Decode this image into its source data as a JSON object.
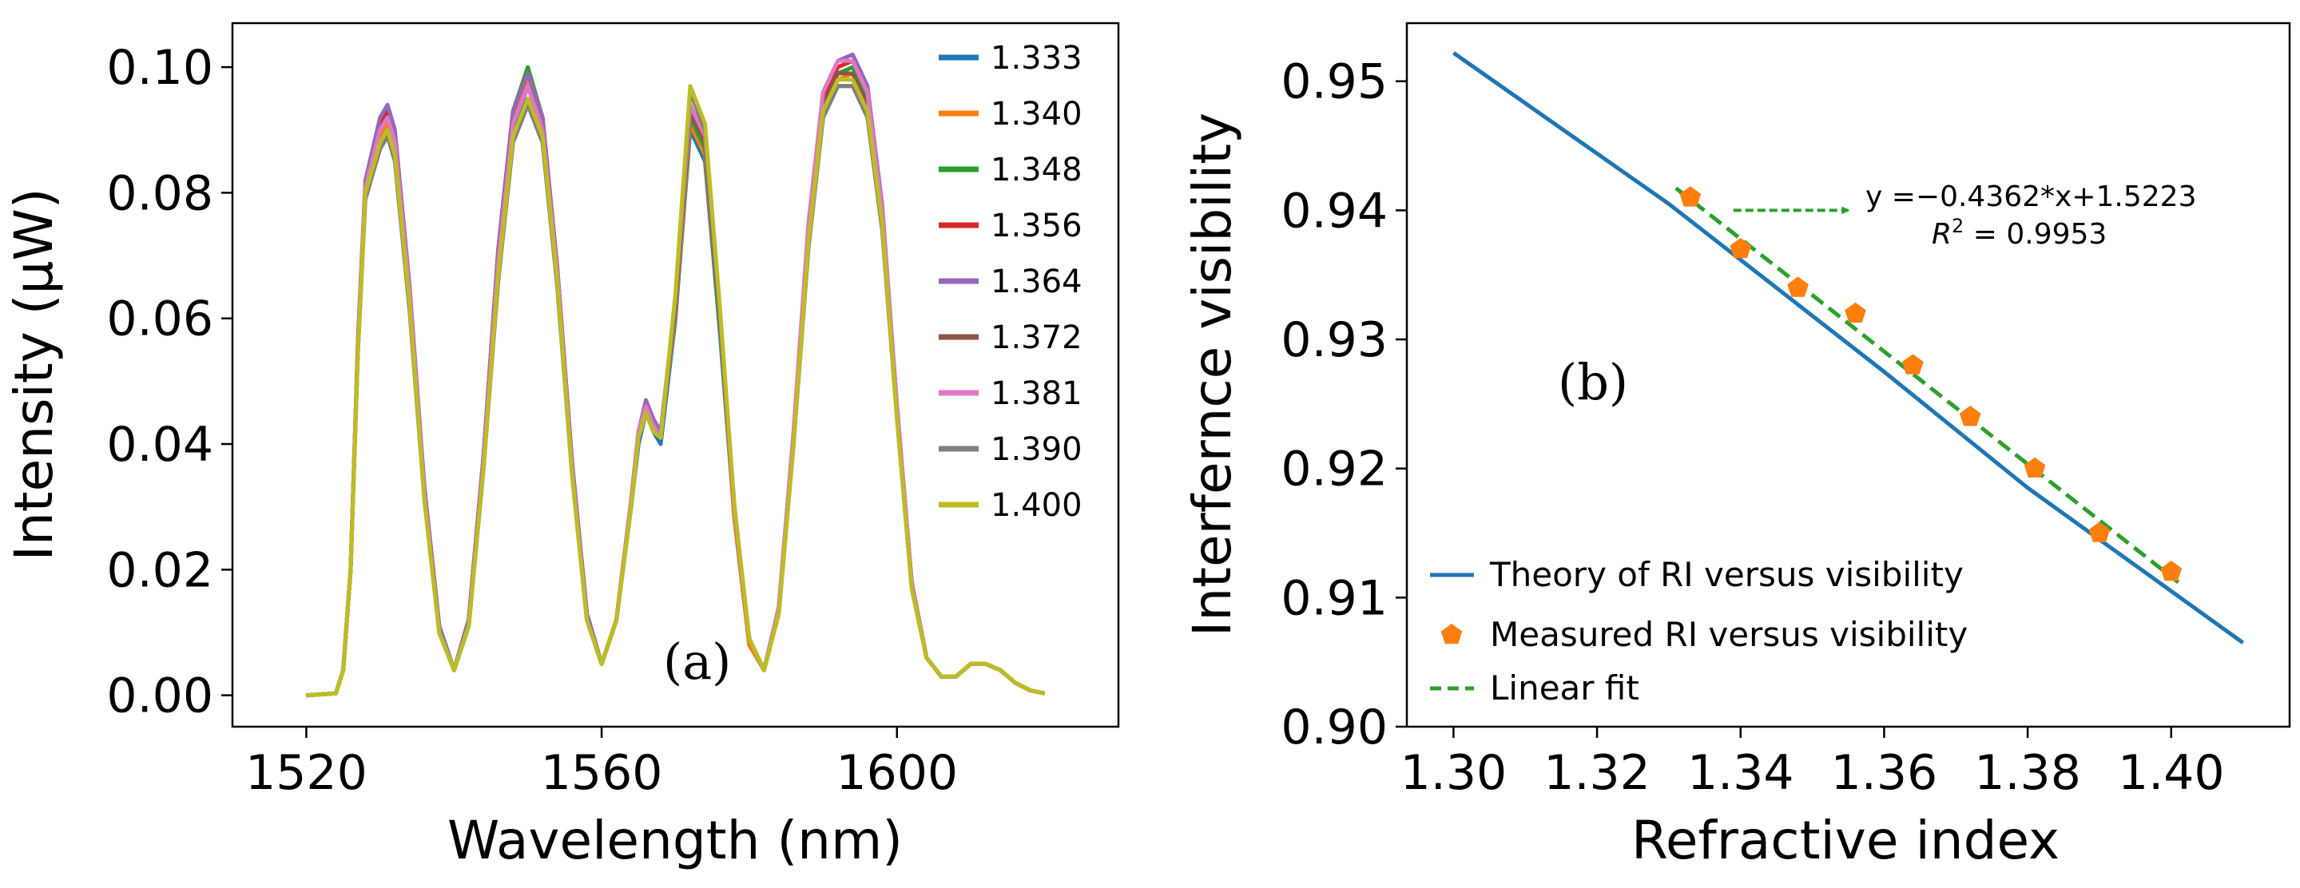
{
  "chart_data": [
    {
      "type": "line",
      "panel_label": "(a)",
      "xlabel": "Wavelength (nm)",
      "ylabel": "Intensity (μW)",
      "xlim": [
        1510,
        1630
      ],
      "ylim": [
        -0.005,
        0.107
      ],
      "xticks": [
        1520,
        1560,
        1600
      ],
      "yticks": [
        0.0,
        0.02,
        0.04,
        0.06,
        0.08,
        0.1
      ],
      "xtick_labels": [
        "1520",
        "1560",
        "1600"
      ],
      "ytick_labels": [
        "0.00",
        "0.02",
        "0.04",
        "0.06",
        "0.08",
        "0.10"
      ],
      "legend_position": "top-right",
      "x": [
        1520,
        1524,
        1525,
        1526,
        1527,
        1528,
        1530,
        1531,
        1532,
        1534,
        1536,
        1538,
        1540,
        1542,
        1544,
        1546,
        1548,
        1550,
        1552,
        1554,
        1556,
        1558,
        1560,
        1562,
        1564,
        1565,
        1566,
        1567,
        1568,
        1570,
        1572,
        1574,
        1576,
        1578,
        1580,
        1582,
        1584,
        1586,
        1588,
        1590,
        1592,
        1594,
        1596,
        1598,
        1600,
        1602,
        1604,
        1606,
        1608,
        1610,
        1612,
        1614,
        1616,
        1618,
        1620
      ],
      "series": [
        {
          "name": "1.333",
          "color": "#1f77b4",
          "values": [
            0,
            0.0003,
            0.004,
            0.02,
            0.055,
            0.08,
            0.088,
            0.09,
            0.086,
            0.062,
            0.032,
            0.01,
            0.004,
            0.011,
            0.036,
            0.068,
            0.09,
            0.097,
            0.09,
            0.066,
            0.036,
            0.012,
            0.005,
            0.012,
            0.03,
            0.04,
            0.045,
            0.042,
            0.04,
            0.06,
            0.09,
            0.085,
            0.058,
            0.028,
            0.008,
            0.004,
            0.014,
            0.04,
            0.072,
            0.092,
            0.097,
            0.097,
            0.093,
            0.075,
            0.045,
            0.018,
            0.006,
            0.003,
            0.003,
            0.005,
            0.005,
            0.004,
            0.002,
            0.0008,
            0.0003
          ]
        },
        {
          "name": "1.340",
          "color": "#ff7f0e",
          "values": [
            0,
            0.0003,
            0.004,
            0.02,
            0.055,
            0.08,
            0.089,
            0.091,
            0.087,
            0.063,
            0.032,
            0.01,
            0.004,
            0.011,
            0.037,
            0.069,
            0.091,
            0.098,
            0.091,
            0.067,
            0.037,
            0.012,
            0.005,
            0.012,
            0.031,
            0.041,
            0.046,
            0.043,
            0.041,
            0.061,
            0.091,
            0.086,
            0.059,
            0.028,
            0.008,
            0.004,
            0.014,
            0.041,
            0.073,
            0.093,
            0.098,
            0.099,
            0.094,
            0.076,
            0.045,
            0.018,
            0.006,
            0.003,
            0.003,
            0.005,
            0.005,
            0.004,
            0.002,
            0.0008,
            0.0003
          ]
        },
        {
          "name": "1.348",
          "color": "#2ca02c",
          "values": [
            0,
            0.0003,
            0.004,
            0.02,
            0.056,
            0.081,
            0.09,
            0.092,
            0.088,
            0.064,
            0.033,
            0.011,
            0.004,
            0.012,
            0.038,
            0.071,
            0.093,
            0.1,
            0.092,
            0.068,
            0.037,
            0.013,
            0.005,
            0.012,
            0.031,
            0.042,
            0.046,
            0.043,
            0.041,
            0.062,
            0.092,
            0.087,
            0.059,
            0.029,
            0.009,
            0.004,
            0.014,
            0.041,
            0.074,
            0.094,
            0.099,
            0.1,
            0.095,
            0.077,
            0.046,
            0.018,
            0.006,
            0.003,
            0.003,
            0.005,
            0.005,
            0.004,
            0.002,
            0.0008,
            0.0003
          ]
        },
        {
          "name": "1.356",
          "color": "#d62728",
          "values": [
            0,
            0.0003,
            0.004,
            0.02,
            0.056,
            0.081,
            0.091,
            0.093,
            0.089,
            0.064,
            0.033,
            0.011,
            0.004,
            0.012,
            0.038,
            0.071,
            0.093,
            0.099,
            0.092,
            0.068,
            0.037,
            0.013,
            0.005,
            0.012,
            0.031,
            0.042,
            0.046,
            0.043,
            0.041,
            0.062,
            0.093,
            0.088,
            0.06,
            0.029,
            0.009,
            0.004,
            0.014,
            0.042,
            0.074,
            0.095,
            0.1,
            0.101,
            0.096,
            0.077,
            0.046,
            0.018,
            0.006,
            0.003,
            0.003,
            0.005,
            0.005,
            0.004,
            0.002,
            0.0008,
            0.0003
          ]
        },
        {
          "name": "1.364",
          "color": "#9467bd",
          "values": [
            0,
            0.0003,
            0.004,
            0.02,
            0.057,
            0.082,
            0.092,
            0.094,
            0.09,
            0.065,
            0.033,
            0.011,
            0.004,
            0.012,
            0.038,
            0.071,
            0.093,
            0.099,
            0.092,
            0.068,
            0.037,
            0.013,
            0.005,
            0.012,
            0.031,
            0.042,
            0.047,
            0.044,
            0.042,
            0.063,
            0.094,
            0.088,
            0.06,
            0.029,
            0.009,
            0.004,
            0.014,
            0.042,
            0.075,
            0.096,
            0.101,
            0.102,
            0.097,
            0.078,
            0.046,
            0.018,
            0.006,
            0.003,
            0.003,
            0.005,
            0.005,
            0.004,
            0.002,
            0.0008,
            0.0003
          ]
        },
        {
          "name": "1.372",
          "color": "#8c564b",
          "values": [
            0,
            0.0003,
            0.004,
            0.02,
            0.056,
            0.081,
            0.09,
            0.092,
            0.088,
            0.064,
            0.032,
            0.01,
            0.004,
            0.011,
            0.037,
            0.069,
            0.091,
            0.097,
            0.09,
            0.067,
            0.036,
            0.012,
            0.005,
            0.012,
            0.03,
            0.041,
            0.046,
            0.043,
            0.041,
            0.062,
            0.093,
            0.088,
            0.06,
            0.029,
            0.009,
            0.004,
            0.014,
            0.041,
            0.073,
            0.094,
            0.099,
            0.099,
            0.094,
            0.076,
            0.045,
            0.018,
            0.006,
            0.003,
            0.003,
            0.005,
            0.005,
            0.004,
            0.002,
            0.0008,
            0.0003
          ]
        },
        {
          "name": "1.381",
          "color": "#e377c2",
          "values": [
            0,
            0.0003,
            0.004,
            0.02,
            0.056,
            0.081,
            0.09,
            0.092,
            0.088,
            0.064,
            0.032,
            0.01,
            0.004,
            0.011,
            0.037,
            0.069,
            0.091,
            0.097,
            0.09,
            0.067,
            0.036,
            0.012,
            0.005,
            0.012,
            0.031,
            0.042,
            0.046,
            0.043,
            0.041,
            0.063,
            0.094,
            0.089,
            0.061,
            0.029,
            0.009,
            0.004,
            0.014,
            0.042,
            0.075,
            0.096,
            0.101,
            0.101,
            0.096,
            0.077,
            0.046,
            0.018,
            0.006,
            0.003,
            0.003,
            0.005,
            0.005,
            0.004,
            0.002,
            0.0008,
            0.0003
          ]
        },
        {
          "name": "1.390",
          "color": "#7f7f7f",
          "values": [
            0,
            0.0003,
            0.004,
            0.02,
            0.055,
            0.079,
            0.087,
            0.089,
            0.085,
            0.061,
            0.031,
            0.01,
            0.004,
            0.011,
            0.036,
            0.066,
            0.088,
            0.094,
            0.088,
            0.065,
            0.035,
            0.012,
            0.005,
            0.012,
            0.03,
            0.041,
            0.045,
            0.042,
            0.041,
            0.063,
            0.096,
            0.09,
            0.061,
            0.03,
            0.009,
            0.004,
            0.013,
            0.04,
            0.071,
            0.092,
            0.097,
            0.097,
            0.092,
            0.074,
            0.044,
            0.017,
            0.006,
            0.003,
            0.003,
            0.005,
            0.005,
            0.004,
            0.002,
            0.0008,
            0.0003
          ]
        },
        {
          "name": "1.400",
          "color": "#bcbd22",
          "values": [
            0,
            0.0003,
            0.004,
            0.02,
            0.055,
            0.08,
            0.088,
            0.09,
            0.086,
            0.062,
            0.031,
            0.01,
            0.004,
            0.011,
            0.036,
            0.067,
            0.089,
            0.095,
            0.089,
            0.066,
            0.035,
            0.012,
            0.005,
            0.012,
            0.03,
            0.041,
            0.045,
            0.042,
            0.041,
            0.064,
            0.097,
            0.091,
            0.062,
            0.03,
            0.009,
            0.004,
            0.013,
            0.04,
            0.072,
            0.093,
            0.098,
            0.098,
            0.093,
            0.075,
            0.044,
            0.017,
            0.006,
            0.003,
            0.003,
            0.005,
            0.005,
            0.004,
            0.002,
            0.0008,
            0.0003
          ]
        }
      ]
    },
    {
      "type": "scatter",
      "panel_label": "(b)",
      "xlabel": "Refractive index",
      "ylabel": "Interfernce visibility",
      "xlim": [
        1.2935,
        1.4165
      ],
      "ylim": [
        0.9,
        0.9545
      ],
      "xticks": [
        1.3,
        1.32,
        1.34,
        1.36,
        1.38,
        1.4
      ],
      "yticks": [
        0.9,
        0.91,
        0.92,
        0.93,
        0.94,
        0.95
      ],
      "xtick_labels": [
        "1.30",
        "1.32",
        "1.34",
        "1.36",
        "1.38",
        "1.40"
      ],
      "ytick_labels": [
        "0.90",
        "0.91",
        "0.92",
        "0.93",
        "0.94",
        "0.95"
      ],
      "legend_position": "bottom-left",
      "theory": {
        "name": "Theory of RI versus visibility",
        "color": "#1f77b4",
        "x": [
          1.3,
          1.33,
          1.36,
          1.38,
          1.41
        ],
        "y": [
          0.9522,
          0.9405,
          0.9275,
          0.9185,
          0.9065
        ]
      },
      "measured": {
        "name": "Measured RI versus visibility",
        "color": "#ff7f0e",
        "x": [
          1.333,
          1.34,
          1.348,
          1.356,
          1.364,
          1.372,
          1.381,
          1.39,
          1.4
        ],
        "y": [
          0.941,
          0.937,
          0.934,
          0.932,
          0.928,
          0.924,
          0.92,
          0.915,
          0.912
        ]
      },
      "fit": {
        "name": "Linear fit",
        "color": "#2ca02c",
        "slope": -0.4362,
        "intercept": 1.5223,
        "x_range": [
          1.331,
          1.401
        ]
      },
      "annotation": {
        "line1": "y =−0.4362*x+1.5223",
        "line2_prefix": "R",
        "line2_sup": "2",
        "line2_suffix": " = 0.9953",
        "arrow_from": [
          1.339,
          0.94
        ],
        "arrow_to": [
          1.355,
          0.94
        ]
      }
    }
  ]
}
